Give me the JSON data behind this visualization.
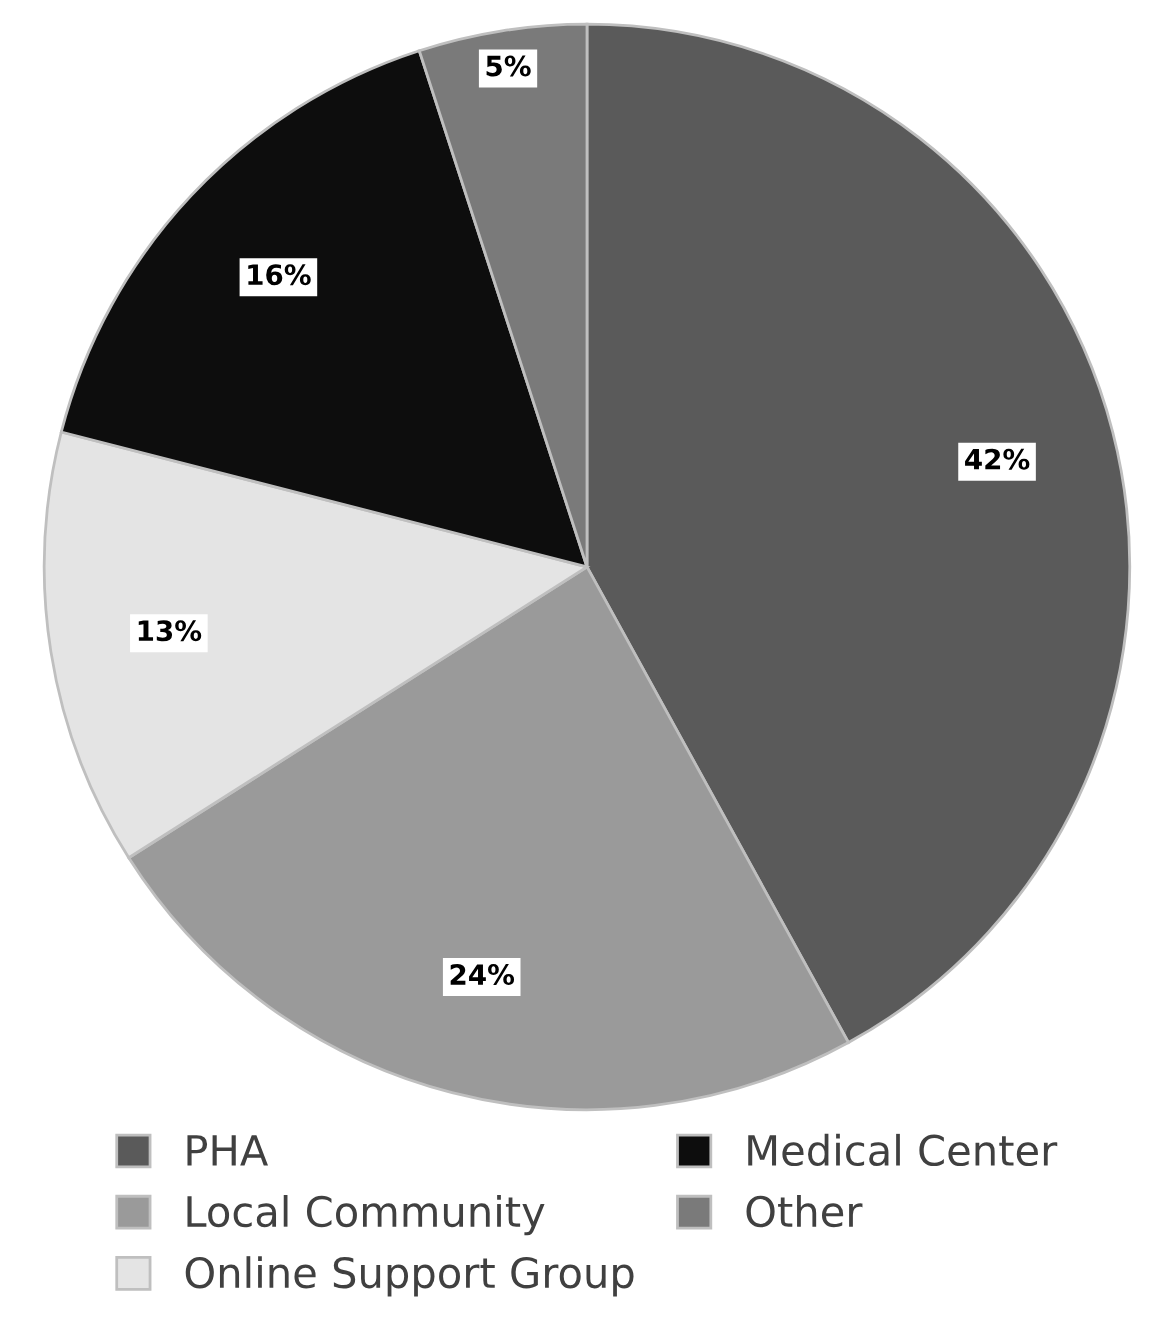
{
  "chart_data": {
    "type": "pie",
    "categories": [
      "PHA",
      "Local Community",
      "Online Support Group",
      "Medical Center",
      "Other"
    ],
    "values": [
      42,
      24,
      13,
      16,
      5
    ],
    "colors": [
      "#5a5a5a",
      "#9a9a9a",
      "#e4e4e4",
      "#0d0d0d",
      "#7a7a7a"
    ],
    "value_labels": [
      "42%",
      "24%",
      "13%",
      "16%",
      "5%"
    ],
    "legend": "bottom"
  }
}
